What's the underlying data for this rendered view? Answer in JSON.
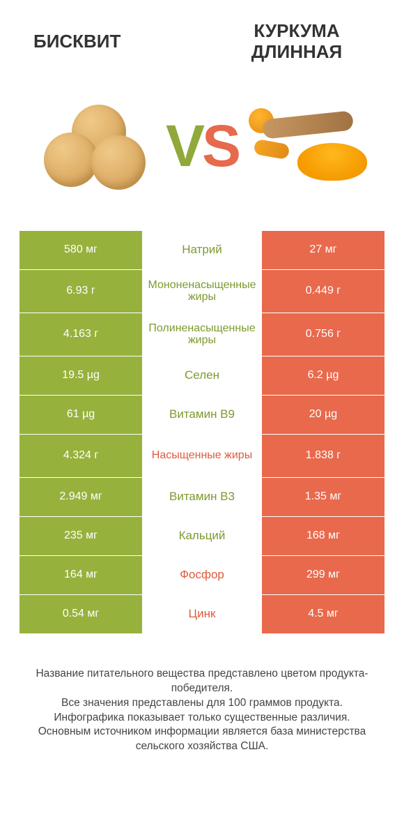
{
  "colors": {
    "left": "#96b23d",
    "right": "#e9694c",
    "left_text": "#7d9a2e",
    "right_text": "#e05a3e"
  },
  "titles": {
    "left": "БИСКВИТ",
    "right": "КУРКУМА\nДЛИННАЯ"
  },
  "vs": {
    "v": "V",
    "s": "S"
  },
  "rows": [
    {
      "left": "580 мг",
      "label": "Натрий",
      "right": "27 мг",
      "winner": "left",
      "tall": false
    },
    {
      "left": "6.93 г",
      "label": "Мононенасыщенные жиры",
      "right": "0.449 г",
      "winner": "left",
      "tall": true
    },
    {
      "left": "4.163 г",
      "label": "Полиненасыщенные жиры",
      "right": "0.756 г",
      "winner": "left",
      "tall": true
    },
    {
      "left": "19.5 µg",
      "label": "Селен",
      "right": "6.2 µg",
      "winner": "left",
      "tall": false
    },
    {
      "left": "61 µg",
      "label": "Витамин B9",
      "right": "20 µg",
      "winner": "left",
      "tall": false
    },
    {
      "left": "4.324 г",
      "label": "Насыщенные жиры",
      "right": "1.838 г",
      "winner": "right",
      "tall": true
    },
    {
      "left": "2.949 мг",
      "label": "Витамин B3",
      "right": "1.35 мг",
      "winner": "left",
      "tall": false
    },
    {
      "left": "235 мг",
      "label": "Кальций",
      "right": "168 мг",
      "winner": "left",
      "tall": false
    },
    {
      "left": "164 мг",
      "label": "Фосфор",
      "right": "299 мг",
      "winner": "right",
      "tall": false
    },
    {
      "left": "0.54 мг",
      "label": "Цинк",
      "right": "4.5 мг",
      "winner": "right",
      "tall": false
    }
  ],
  "footer": {
    "l1": "Название питательного вещества представлено цветом продукта-победителя.",
    "l2": "Все значения представлены для 100 граммов продукта.",
    "l3": "Инфографика показывает только существенные различия.",
    "l4": "Основным источником информации является база министерства сельского хозяйства США."
  }
}
